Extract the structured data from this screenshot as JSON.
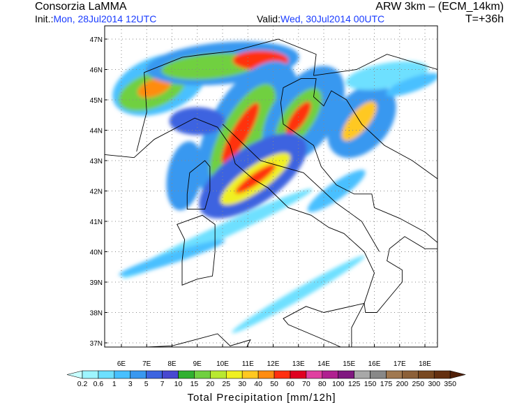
{
  "header": {
    "title_left": "Consorzia LaMMA",
    "title_right": "ARW 3km – (ECM_14km)",
    "init_label": "Init.:",
    "init_value": "Mon, 28Jul2014 12UTC",
    "valid_label": "Valid:",
    "valid_value": "Wed, 30Jul2014 00UTC",
    "forecast_time": "T=+36h"
  },
  "map": {
    "lat_labels": [
      "47N",
      "46N",
      "45N",
      "44N",
      "43N",
      "42N",
      "41N",
      "40N",
      "39N",
      "38N",
      "37N"
    ],
    "lon_labels": [
      "6E",
      "7E",
      "8E",
      "9E",
      "10E",
      "11E",
      "12E",
      "13E",
      "14E",
      "15E",
      "16E",
      "17E",
      "18E"
    ]
  },
  "colorbar": {
    "title": "Total Precipitation [mm/12h]",
    "levels": [
      0.2,
      0.6,
      1,
      3,
      5,
      7,
      10,
      15,
      20,
      25,
      30,
      40,
      50,
      60,
      70,
      80,
      100,
      125,
      150,
      175,
      200,
      250,
      300,
      350
    ],
    "colors": [
      "#c8ffff",
      "#9ef5ff",
      "#6ee0ff",
      "#48c0ff",
      "#3898f0",
      "#3c64e0",
      "#4848d0",
      "#30b030",
      "#70d040",
      "#b8e830",
      "#f0f020",
      "#ffc820",
      "#ff8c10",
      "#ff3010",
      "#e00020",
      "#e040a0",
      "#b02090",
      "#801880",
      "#a8a8a8",
      "#888888",
      "#a07850",
      "#8c6038",
      "#784820",
      "#643010",
      "#502008"
    ]
  }
}
